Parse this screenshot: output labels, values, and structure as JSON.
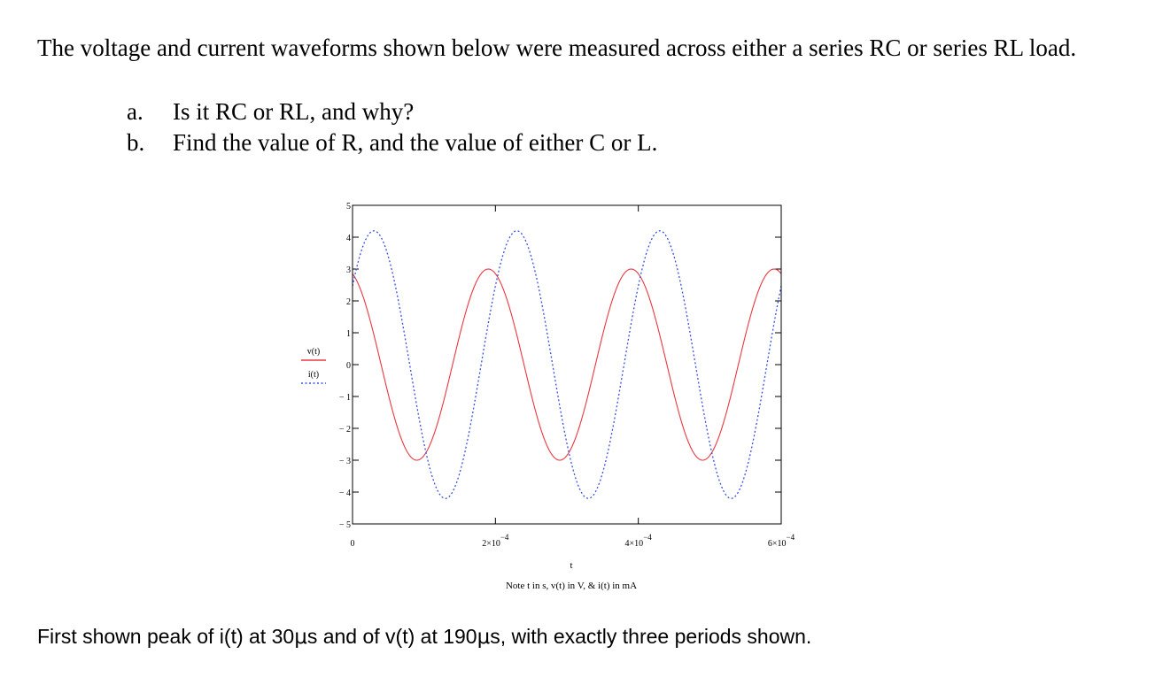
{
  "question": {
    "intro": "The voltage and current waveforms shown below were measured across either a series RC or series RL load.",
    "items": [
      {
        "label": "a.",
        "text": "Is it RC or RL, and why?"
      },
      {
        "label": "b.",
        "text": "Find the value of R, and the value of either C or L."
      }
    ]
  },
  "chart_data": {
    "type": "line",
    "xlabel": "t",
    "caption": "Note t in s, v(t) in V, & i(t) in mA",
    "xlim": [
      0,
      0.0006
    ],
    "ylim": [
      -5,
      5
    ],
    "x_ticks": [
      {
        "value": 0,
        "label": "0",
        "exp": ""
      },
      {
        "value": 0.0002,
        "label": "2×10",
        "exp": "−4"
      },
      {
        "value": 0.0004,
        "label": "4×10",
        "exp": "−4"
      },
      {
        "value": 0.0006,
        "label": "6×10",
        "exp": "−4"
      }
    ],
    "y_ticks": [
      {
        "value": 5,
        "label": "5"
      },
      {
        "value": 4,
        "label": "4"
      },
      {
        "value": 3,
        "label": "3"
      },
      {
        "value": 2,
        "label": "2"
      },
      {
        "value": 1,
        "label": "1"
      },
      {
        "value": 0,
        "label": "0"
      },
      {
        "value": -1,
        "label": "− 1"
      },
      {
        "value": -2,
        "label": "− 2"
      },
      {
        "value": -3,
        "label": "− 3"
      },
      {
        "value": -4,
        "label": "− 4"
      },
      {
        "value": -5,
        "label": "− 5"
      }
    ],
    "legend_position": "left",
    "series": [
      {
        "name": "v(t)",
        "color": "#e8383f",
        "dash": "solid",
        "amplitude": 3,
        "period": 0.0002,
        "first_peak": 0.00019
      },
      {
        "name": "i(t)",
        "color": "#3a50e0",
        "dash": "dotted",
        "amplitude": 4.2,
        "period": 0.0002,
        "first_peak": 3e-05
      }
    ]
  },
  "note": {
    "before": "First shown peak of i(t) at 30",
    "mu1": "μ",
    "middle": "s and of v(t) at 190",
    "mu2": "μ",
    "after": "s, with exactly three periods shown."
  }
}
